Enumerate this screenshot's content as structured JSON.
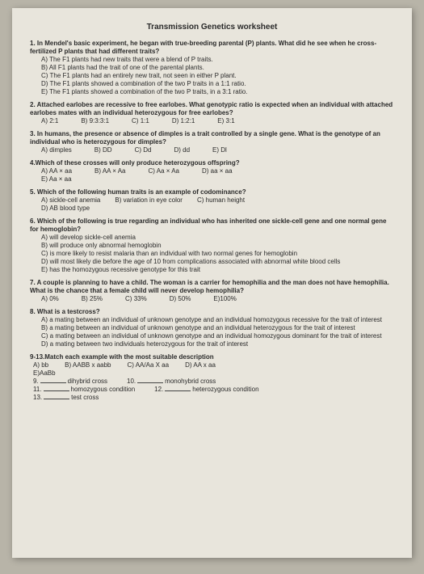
{
  "title": "Transmission Genetics worksheet",
  "q1": {
    "text": "1. In Mendel's basic experiment, he began with true-breeding parental (P) plants. What did he see when he cross-fertilized P plants that had different traits?",
    "a": "A) The F1 plants had new traits that were a blend of P traits.",
    "b": "B) All F1 plants had the trait of one of the parental plants.",
    "c": "C) The F1 plants had an entirely new trait, not seen in either P plant.",
    "d": "D) The F1 plants showed a combination of the two P traits in a 1:1 ratio.",
    "e": "E) The F1 plants showed a combination of the two P traits, in a 3:1 ratio."
  },
  "q2": {
    "text": "2. Attached earlobes are recessive to free earlobes. What genotypic ratio is expected when an individual with attached earlobes mates with an individual heterozygous for free earlobes?",
    "a": "A) 2:1",
    "b": "B) 9:3:3:1",
    "c": "C) 1:1",
    "d": "D) 1:2:1",
    "e": "E) 3:1"
  },
  "q3": {
    "text": "3. In humans, the presence or absence of dimples is a trait controlled by a single gene. What is the genotype of an individual who is heterozygous for dimples?",
    "a": "A) dimples",
    "b": "B) DD",
    "c": "C) Dd",
    "d": "D) dd",
    "e": "E) Dl"
  },
  "q4": {
    "text": "4.Which of these crosses will only produce heterozygous offspring?",
    "a": "A) AA × aa",
    "b": "B) AA × Aa",
    "c": "C) Aa × Aa",
    "d": "D) aa × aa",
    "e": "E) Aa × aa"
  },
  "q5": {
    "text": "5. Which of the following human traits is an example of codominance?",
    "a": "A) sickle-cell anemia",
    "b": "B) variation in eye color",
    "c": "C) human height",
    "d": "D) AB blood type"
  },
  "q6": {
    "text": "6. Which of the following is true regarding an individual who has inherited one sickle-cell gene and one normal gene for hemoglobin?",
    "a": "A) will develop sickle-cell anemia",
    "b": "B) will produce only abnormal hemoglobin",
    "c": "C) is more likely to resist malaria than an individual with two normal genes for hemoglobin",
    "d": "D) will most likely die before the age of 10 from complications associated with abnormal white blood cells",
    "e": "E) has the homozygous recessive genotype for this trait"
  },
  "q7": {
    "text": "7. A couple is planning to have a child. The woman is a carrier for hemophilia and the man does not have hemophilia. What is the chance that a female child will never develop hemophilia?",
    "a": "A) 0%",
    "b": "B) 25%",
    "c": "C) 33%",
    "d": "D) 50%",
    "e": "E)100%"
  },
  "q8": {
    "text": "8. What is a testcross?",
    "a": "A) a mating between an individual of unknown genotype and an individual homozygous recessive for the trait of interest",
    "b": "B) a mating between an individual of unknown genotype and an individual heterozygous for the trait of interest",
    "c": "C) a mating between an individual of unknown genotype and an individual homozygous dominant for the trait of interest",
    "d": "D) a mating between two individuals heterozygous for the trait of interest"
  },
  "q9": {
    "text": "9-13.Match each example with the most suitable description",
    "a": "A) bb",
    "b": "B) AABB x aabb",
    "c": "C) AA/Aa X aa",
    "d": "D) AA x aa",
    "e": "E)AaBb"
  },
  "blanks": {
    "i9": "9.",
    "t9": "dihybrid cross",
    "i10": "10.",
    "t10": "monohybrid cross",
    "i11": "11.",
    "t11": "homozygous condition",
    "i12": "12.",
    "t12": "heterozygous condition",
    "i13": "13.",
    "t13": "test cross"
  }
}
